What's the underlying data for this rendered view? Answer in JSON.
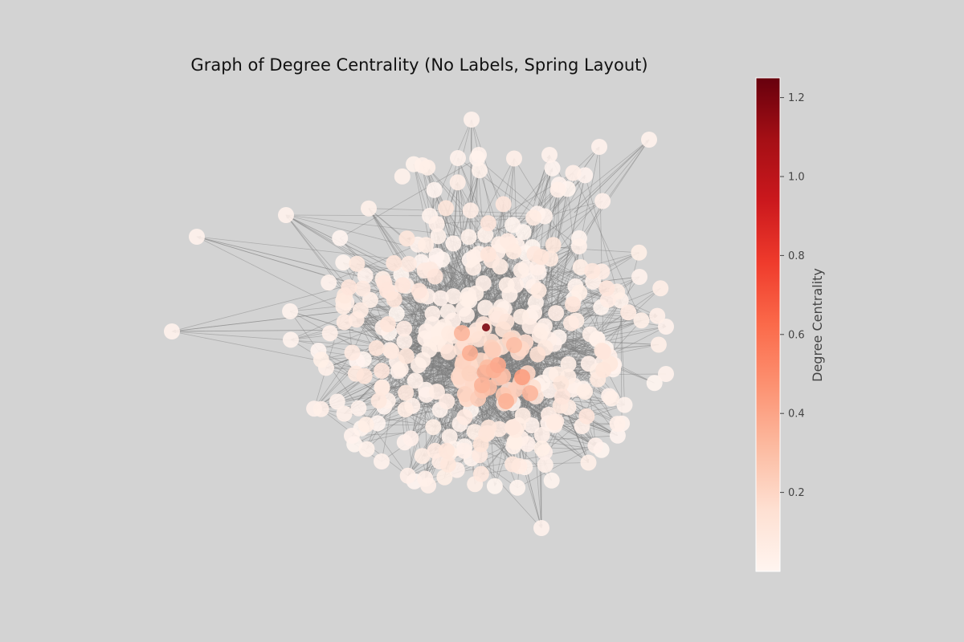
{
  "title": "Graph of Degree Centrality (No Labels, Spring Layout)",
  "colorbar": {
    "label": "Degree Centrality",
    "min": 0.0,
    "max": 1.25,
    "ticks": [
      "0.2",
      "0.4",
      "0.6",
      "0.8",
      "1.0",
      "1.2"
    ],
    "colormap": "Reds",
    "low_color": "#fff5f0",
    "high_color": "#67000d"
  },
  "graph": {
    "layout": "spring",
    "directed": true,
    "node_labels": "none",
    "edge_color": "#808080"
  }
}
